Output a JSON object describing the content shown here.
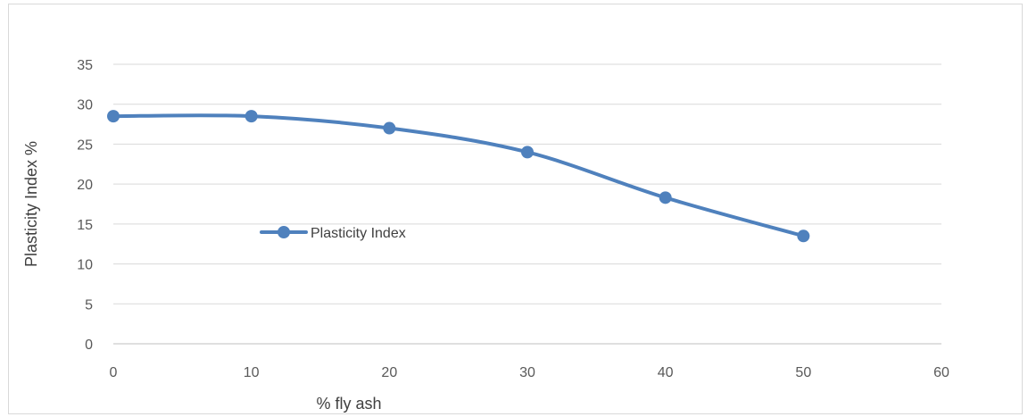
{
  "chart_data": {
    "type": "line",
    "xlabel": "% fly ash",
    "ylabel": "Plasticity Index %",
    "xlim": [
      0,
      60
    ],
    "ylim": [
      0,
      35
    ],
    "x_ticks": [
      0,
      10,
      20,
      30,
      40,
      50,
      60
    ],
    "y_ticks": [
      0,
      5,
      10,
      15,
      20,
      25,
      30,
      35
    ],
    "grid": "horizontal",
    "smooth": true,
    "legend_position": "inside-left",
    "series": [
      {
        "name": "Plasticity Index",
        "color": "#4F81BD",
        "x": [
          0,
          10,
          20,
          30,
          40,
          50
        ],
        "y": [
          28.5,
          28.5,
          27,
          24,
          18.3,
          13.5
        ]
      }
    ]
  }
}
